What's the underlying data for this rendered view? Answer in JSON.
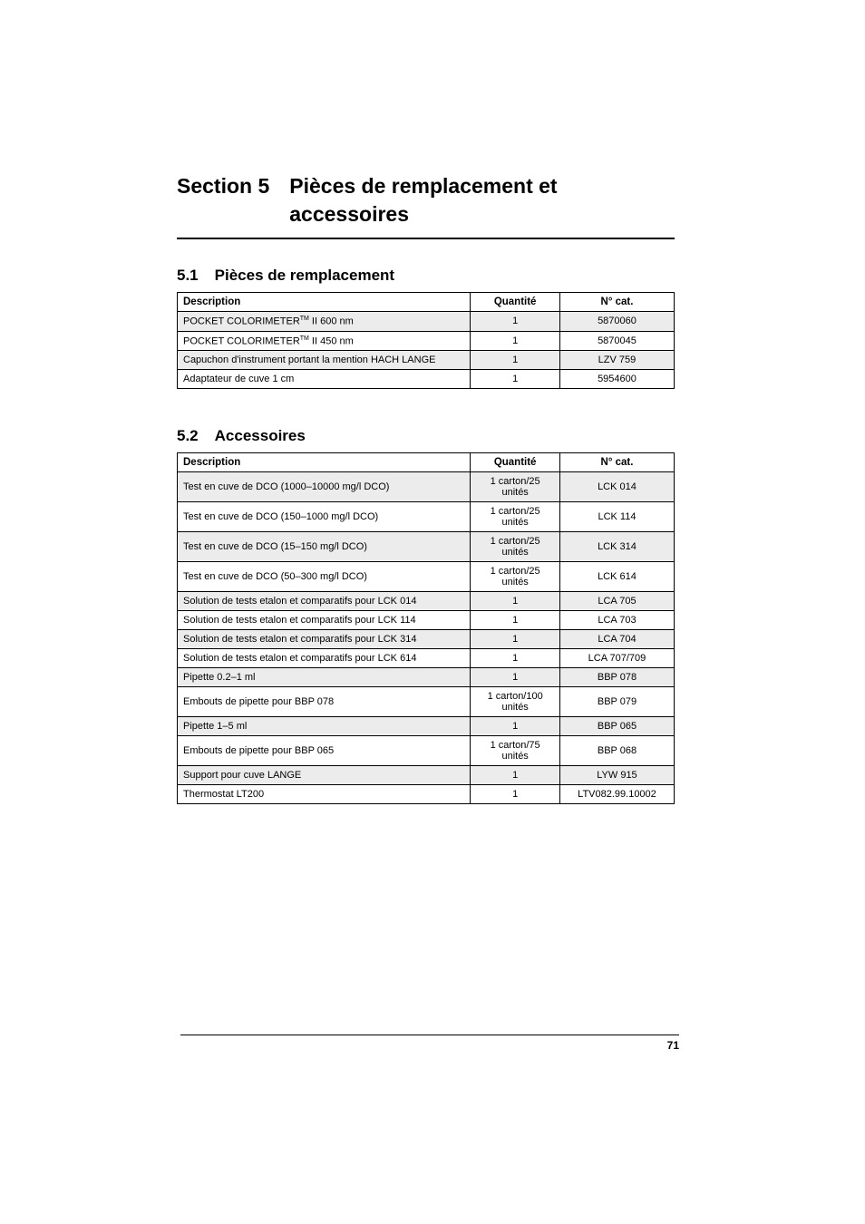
{
  "section": {
    "number": "Section 5",
    "title_line1": "Pièces de remplacement et",
    "title_line2": "accessoires"
  },
  "sub1": {
    "number": "5.1",
    "title": "Pièces de remplacement"
  },
  "sub2": {
    "number": "5.2",
    "title": "Accessoires"
  },
  "headers": {
    "desc": "Description",
    "qty": "Quantité",
    "cat": "N° cat."
  },
  "table1": {
    "rows": [
      {
        "desc_pre": "POCKET COLORIMETER",
        "desc_post": " II 600 nm",
        "tm": true,
        "qty": "1",
        "cat": "5870060",
        "shade": true
      },
      {
        "desc_pre": "POCKET COLORIMETER",
        "desc_post": " II 450 nm",
        "tm": true,
        "qty": "1",
        "cat": "5870045",
        "shade": false
      },
      {
        "desc": "Capuchon d'instrument portant la mention HACH LANGE",
        "qty": "1",
        "cat": "LZV 759",
        "shade": true
      },
      {
        "desc": "Adaptateur de cuve 1 cm",
        "qty": "1",
        "cat": "5954600",
        "shade": false
      }
    ]
  },
  "table2": {
    "rows": [
      {
        "desc": "Test en cuve de DCO (1000–10000 mg/l DCO)",
        "qty": "1 carton/25 unités",
        "cat": "LCK 014",
        "shade": true
      },
      {
        "desc": "Test en cuve de DCO (150–1000 mg/l DCO)",
        "qty": "1 carton/25 unités",
        "cat": "LCK 114",
        "shade": false
      },
      {
        "desc": "Test en cuve de DCO (15–150 mg/l DCO)",
        "qty": "1 carton/25 unités",
        "cat": "LCK 314",
        "shade": true
      },
      {
        "desc": "Test en cuve de DCO (50–300 mg/l DCO)",
        "qty": "1 carton/25 unités",
        "cat": "LCK 614",
        "shade": false
      },
      {
        "desc": "Solution de tests etalon et comparatifs pour LCK 014",
        "qty": "1",
        "cat": "LCA 705",
        "shade": true
      },
      {
        "desc": "Solution de tests etalon et comparatifs pour LCK 114",
        "qty": "1",
        "cat": "LCA 703",
        "shade": false
      },
      {
        "desc": "Solution de tests etalon et comparatifs pour LCK 314",
        "qty": "1",
        "cat": "LCA 704",
        "shade": true
      },
      {
        "desc": "Solution de tests etalon et comparatifs pour LCK 614",
        "qty": "1",
        "cat": "LCA 707/709",
        "shade": false
      },
      {
        "desc": "Pipette 0.2–1 ml",
        "qty": "1",
        "cat": "BBP 078",
        "shade": true
      },
      {
        "desc": "Embouts de pipette pour BBP 078",
        "qty": "1 carton/100 unités",
        "cat": "BBP 079",
        "shade": false
      },
      {
        "desc": "Pipette 1–5 ml",
        "qty": "1",
        "cat": "BBP 065",
        "shade": true
      },
      {
        "desc": "Embouts de pipette pour BBP 065",
        "qty": "1 carton/75 unités",
        "cat": "BBP 068",
        "shade": false
      },
      {
        "desc": "Support pour cuve LANGE",
        "qty": "1",
        "cat": "LYW 915",
        "shade": true
      },
      {
        "desc": "Thermostat LT200",
        "qty": "1",
        "cat": "LTV082.99.10002",
        "shade": false
      }
    ]
  },
  "page_number": "71",
  "tm_text": "TM"
}
